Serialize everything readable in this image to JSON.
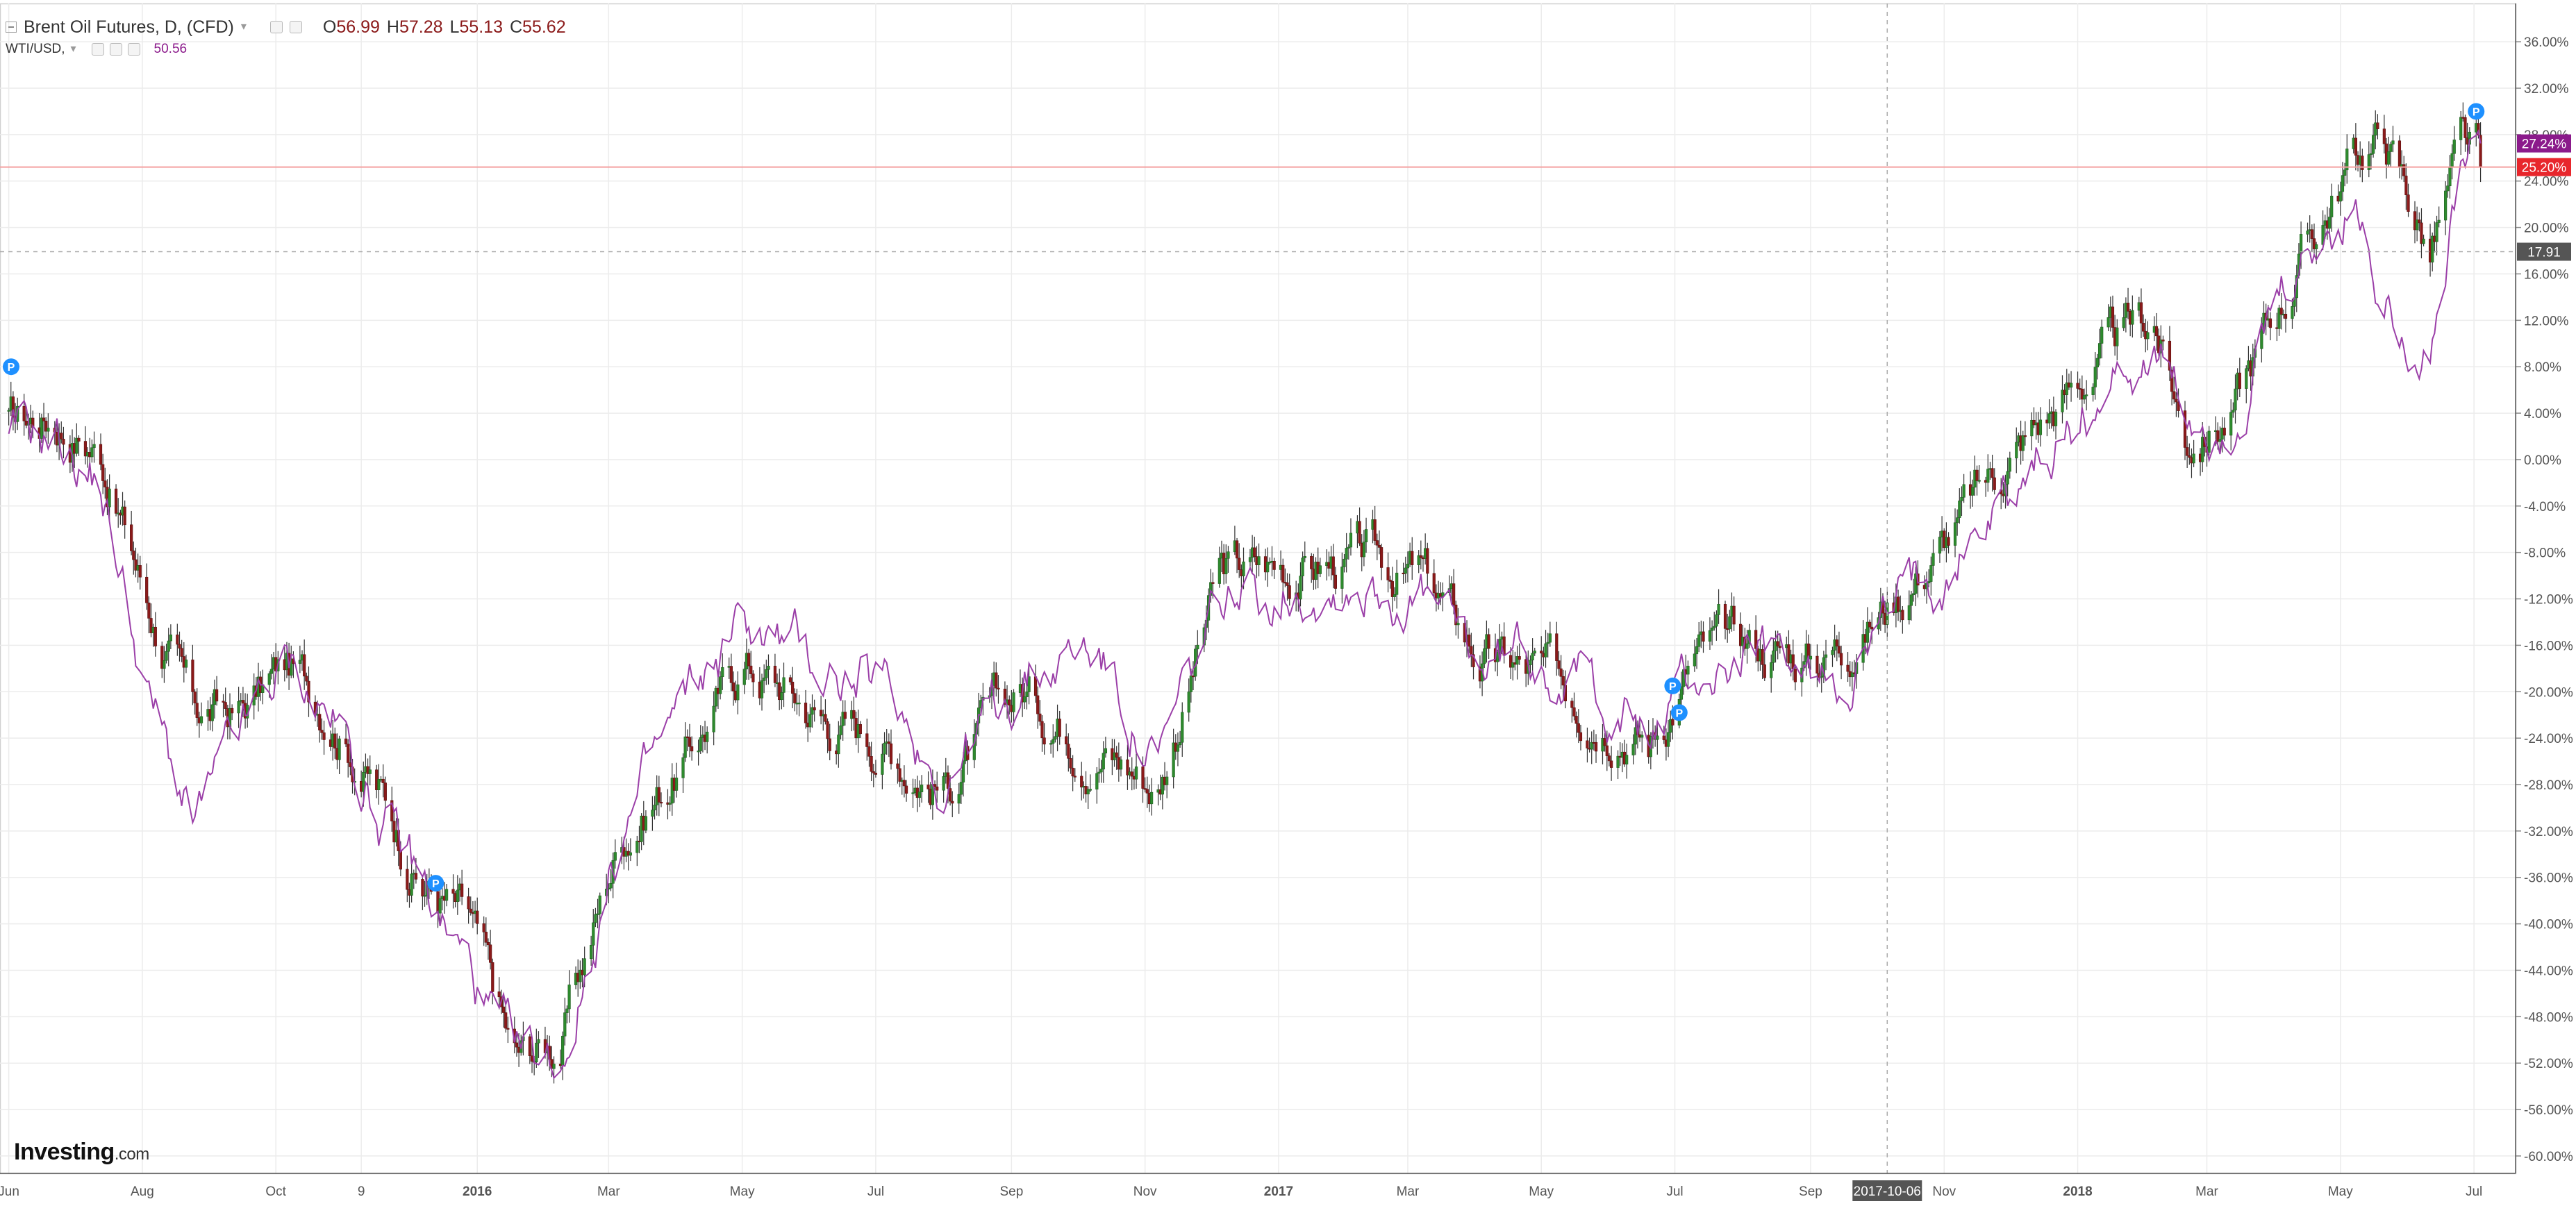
{
  "legend": {
    "title": "Brent Oil Futures, D, (CFD)",
    "open_label": "O",
    "open": "56.99",
    "high_label": "H",
    "high": "57.28",
    "low_label": "L",
    "low": "55.13",
    "close_label": "C",
    "close": "55.62",
    "compare_symbol": "WTI/USD,",
    "compare_value": "50.56"
  },
  "brand": {
    "name": "Investing",
    "suffix": ".com"
  },
  "price_badges": {
    "wti": {
      "text": "27.24%",
      "color": "#8b1a8b"
    },
    "brent": {
      "text": "25.20%",
      "color": "#e8262c"
    },
    "crosshair": {
      "text": "17.91",
      "color": "#555555"
    }
  },
  "crosshair_date": "2017-10-06",
  "colors": {
    "up_candle": "#2e8b2e",
    "down_candle": "#8b1a1a",
    "wick": "#333333",
    "compare_line": "#9b3fa8",
    "current_line": "#f4a0a0",
    "marker": "#1e90ff",
    "grid": "#ececec"
  },
  "icons": [
    "collapse-icon",
    "dropdown-caret-icon",
    "settings-icon",
    "hide-icon",
    "close-icon",
    "marker-p-icon"
  ],
  "chart_data": {
    "type": "line",
    "series": [
      {
        "name": "Brent Oil Futures, D, (CFD)",
        "kind": "candlestick",
        "x": [
          "2015-06-01",
          "2015-06-22",
          "2015-07-13",
          "2015-08-03",
          "2015-08-24",
          "2015-09-14",
          "2015-10-05",
          "2015-10-26",
          "2015-11-16",
          "2015-12-07",
          "2015-12-28",
          "2016-01-18",
          "2016-02-08",
          "2016-03-07",
          "2016-04-04",
          "2016-05-02",
          "2016-06-06",
          "2016-07-04",
          "2016-08-01",
          "2016-09-05",
          "2016-10-10",
          "2016-11-07",
          "2016-12-05",
          "2017-01-09",
          "2017-02-06",
          "2017-03-06",
          "2017-04-03",
          "2017-05-01",
          "2017-06-05",
          "2017-06-19",
          "2017-07-10",
          "2017-08-07",
          "2017-09-04",
          "2017-10-02",
          "2017-11-06",
          "2017-12-04",
          "2018-01-08",
          "2018-02-05",
          "2018-02-19",
          "2018-03-12",
          "2018-04-09",
          "2018-05-07",
          "2018-05-21",
          "2018-06-11",
          "2018-06-25",
          "2018-07-04"
        ],
        "values": [
          3,
          4,
          1,
          -12,
          -22,
          -22,
          -18,
          -21,
          -28,
          -36,
          -40,
          -52,
          -50,
          -32,
          -26,
          -17,
          -22,
          -24,
          -28,
          -20,
          -24,
          -28,
          -10,
          -9,
          -9,
          -10,
          -17,
          -19,
          -21,
          -24,
          -17,
          -16,
          -17,
          -13,
          -6,
          1,
          8,
          12,
          2,
          4,
          16,
          26,
          28,
          18,
          26,
          25.2
        ]
      },
      {
        "name": "WTI/USD",
        "kind": "line",
        "x": [
          "2015-06-01",
          "2015-06-22",
          "2015-07-13",
          "2015-08-03",
          "2015-08-24",
          "2015-09-14",
          "2015-10-05",
          "2015-10-26",
          "2015-11-16",
          "2015-12-07",
          "2015-12-28",
          "2016-01-18",
          "2016-02-08",
          "2016-03-07",
          "2016-04-04",
          "2016-05-02",
          "2016-06-06",
          "2016-07-04",
          "2016-08-01",
          "2016-09-05",
          "2016-10-10",
          "2016-11-07",
          "2016-12-05",
          "2017-01-09",
          "2017-02-06",
          "2017-03-06",
          "2017-04-03",
          "2017-05-01",
          "2017-06-05",
          "2017-06-19",
          "2017-07-10",
          "2017-08-07",
          "2017-09-04",
          "2017-10-02",
          "2017-11-06",
          "2017-12-04",
          "2018-01-08",
          "2018-02-05",
          "2018-02-19",
          "2018-03-12",
          "2018-04-09",
          "2018-05-07",
          "2018-05-21",
          "2018-06-11",
          "2018-06-25",
          "2018-07-04"
        ],
        "values": [
          1,
          2,
          -2,
          -20,
          -32,
          -25,
          -18,
          -22,
          -30,
          -37,
          -44,
          -53,
          -52,
          -32,
          -22,
          -14,
          -18,
          -20,
          -27,
          -19,
          -16,
          -27,
          -13,
          -10,
          -10,
          -12,
          -18,
          -16,
          -21,
          -24,
          -19,
          -17,
          -20,
          -15,
          -7,
          -2,
          5,
          10,
          3,
          4,
          14,
          22,
          13,
          11,
          24,
          27.24
        ]
      }
    ],
    "x_ticks": [
      {
        "date": "2015-06-01",
        "label": "Jun",
        "bold": false
      },
      {
        "date": "2015-08-01",
        "label": "Aug",
        "bold": false
      },
      {
        "date": "2015-10-01",
        "label": "Oct",
        "bold": false
      },
      {
        "date": "2015-11-09",
        "label": "9",
        "bold": false
      },
      {
        "date": "2016-01-01",
        "label": "2016",
        "bold": true
      },
      {
        "date": "2016-03-01",
        "label": "Mar",
        "bold": false
      },
      {
        "date": "2016-05-01",
        "label": "May",
        "bold": false
      },
      {
        "date": "2016-07-01",
        "label": "Jul",
        "bold": false
      },
      {
        "date": "2016-09-01",
        "label": "Sep",
        "bold": false
      },
      {
        "date": "2016-11-01",
        "label": "Nov",
        "bold": false
      },
      {
        "date": "2017-01-01",
        "label": "2017",
        "bold": true
      },
      {
        "date": "2017-03-01",
        "label": "Mar",
        "bold": false
      },
      {
        "date": "2017-05-01",
        "label": "May",
        "bold": false
      },
      {
        "date": "2017-07-01",
        "label": "Jul",
        "bold": false
      },
      {
        "date": "2017-09-01",
        "label": "Sep",
        "bold": false
      },
      {
        "date": "2017-11-01",
        "label": "Nov",
        "bold": false
      },
      {
        "date": "2018-01-01",
        "label": "2018",
        "bold": true
      },
      {
        "date": "2018-03-01",
        "label": "Mar",
        "bold": false
      },
      {
        "date": "2018-05-01",
        "label": "May",
        "bold": false
      },
      {
        "date": "2018-07-01",
        "label": "Jul",
        "bold": false
      }
    ],
    "y_ticks": [
      "36.00%",
      "32.00%",
      "28.00%",
      "24.00%",
      "20.00%",
      "16.00%",
      "12.00%",
      "8.00%",
      "4.00%",
      "0.00%",
      "-4.00%",
      "-8.00%",
      "-12.00%",
      "-16.00%",
      "-20.00%",
      "-24.00%",
      "-28.00%",
      "-32.00%",
      "-36.00%",
      "-40.00%",
      "-44.00%",
      "-48.00%",
      "-52.00%",
      "-56.00%",
      "-60.00%"
    ],
    "y_tick_values": [
      36,
      32,
      28,
      24,
      20,
      16,
      12,
      8,
      4,
      0,
      -4,
      -8,
      -12,
      -16,
      -20,
      -24,
      -28,
      -32,
      -36,
      -40,
      -44,
      -48,
      -52,
      -56,
      -60
    ],
    "ylim": [
      -61.5,
      39
    ],
    "xlim": [
      "2015-05-28",
      "2018-07-20"
    ],
    "current_value": 25.2,
    "crosshair_value": 17.91,
    "markers": [
      {
        "date": "2015-05-31",
        "value": 8.0,
        "label": "P"
      },
      {
        "date": "2015-12-13",
        "value": -36.5,
        "label": "P"
      },
      {
        "date": "2017-06-30",
        "value": -19.5,
        "label": "P"
      },
      {
        "date": "2017-07-03",
        "value": -21.8,
        "label": "P"
      },
      {
        "date": "2018-07-02",
        "value": 30.0,
        "label": "P"
      }
    ],
    "grid": true,
    "legend_position": "top-left"
  }
}
